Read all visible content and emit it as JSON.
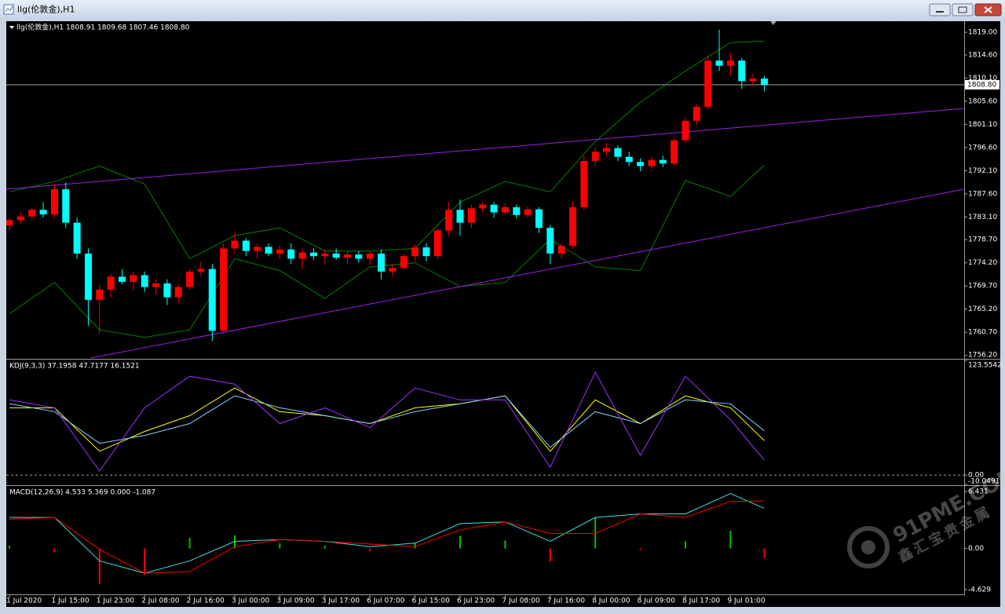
{
  "window": {
    "title": "llg(伦敦金),H1"
  },
  "watermark": [
    "91PME.COM",
    "鑫汇宝贵金属"
  ],
  "chart_data": [
    {
      "type": "candlestick",
      "label": "llg(伦敦金),H1  1808.91 1809.68 1807.46 1808.80",
      "categories": [
        "1 Jul 2020",
        null,
        null,
        null,
        "1 Jul 15:00",
        null,
        null,
        null,
        "1 Jul 23:00",
        null,
        null,
        null,
        "2 Jul 08:00",
        null,
        null,
        null,
        "2 Jul 16:00",
        null,
        null,
        null,
        "3 Jul 00:00",
        null,
        null,
        null,
        "3 Jul 09:00",
        null,
        null,
        null,
        "3 Jul 17:00",
        null,
        null,
        null,
        "6 Jul 07:00",
        null,
        null,
        null,
        "6 Jul 15:00",
        null,
        null,
        null,
        "6 Jul 23:00",
        null,
        null,
        null,
        "7 Jul 08:00",
        null,
        null,
        null,
        "7 Jul 16:00",
        null,
        null,
        null,
        "8 Jul 00:00",
        null,
        null,
        null,
        "8 Jul 09:00",
        null,
        null,
        null,
        "8 Jul 17:00",
        null,
        null,
        null,
        "9 Jul 01:00",
        null,
        null,
        null
      ],
      "open": [
        1781.5,
        1782.5,
        1783.2,
        1784.5,
        1783.6,
        1788.5,
        1782,
        1776,
        1767,
        1769,
        1771.5,
        1770.5,
        1771.8,
        1769.5,
        1770.2,
        1767.5,
        1769.5,
        1772.5,
        1773,
        1761,
        1777,
        1778.5,
        1776.5,
        1777.3,
        1776,
        1776.8,
        1775,
        1776.2,
        1775.5,
        1776,
        1775.2,
        1775.8,
        1775,
        1776,
        1772.5,
        1773.2,
        1775.5,
        1777.2,
        1775.5,
        1780.5,
        1784.5,
        1782,
        1784.8,
        1785.5,
        1784,
        1785,
        1783.5,
        1784.6,
        1781,
        1776,
        1777.5,
        1785,
        1794,
        1795.8,
        1796.5,
        1794.8,
        1793.8,
        1793,
        1794.2,
        1793.5,
        1798,
        1801.8,
        1804.5,
        1813.5,
        1812.5,
        1813.5,
        1809.5,
        1810
      ],
      "high": [
        1783,
        1784,
        1785,
        1786,
        1789.5,
        1789.8,
        1783,
        1777,
        1770,
        1772,
        1773,
        1772.5,
        1772.5,
        1771,
        1771,
        1770,
        1773,
        1774.5,
        1774,
        1778,
        1780,
        1779,
        1778,
        1778,
        1777.5,
        1778,
        1777,
        1777,
        1776.8,
        1777,
        1776.5,
        1776.5,
        1776.5,
        1776.8,
        1774,
        1776,
        1777.8,
        1778,
        1781,
        1786,
        1786.5,
        1785.5,
        1786,
        1786,
        1785.8,
        1785.5,
        1785.2,
        1785,
        1781.5,
        1778,
        1786,
        1795,
        1796.5,
        1797.5,
        1797,
        1795.8,
        1794.5,
        1795,
        1795,
        1798.5,
        1802.5,
        1805,
        1814.5,
        1819.5,
        1815,
        1814,
        1811,
        1810.5
      ],
      "low": [
        1780.5,
        1781.8,
        1782.5,
        1783,
        1783,
        1781,
        1775,
        1762,
        1760.5,
        1767.5,
        1770,
        1768.8,
        1768.5,
        1768,
        1766,
        1766.5,
        1769,
        1771.5,
        1759,
        1760.5,
        1776,
        1775.5,
        1775,
        1775.5,
        1775,
        1774,
        1773,
        1774.8,
        1774,
        1774.8,
        1774,
        1774.2,
        1773.8,
        1771,
        1771.5,
        1772.8,
        1774.5,
        1774.5,
        1775,
        1779.5,
        1779.5,
        1781,
        1784,
        1783,
        1783.5,
        1782.8,
        1783,
        1780,
        1774,
        1775,
        1777,
        1784.5,
        1793,
        1795,
        1794,
        1793,
        1792,
        1792.5,
        1792.8,
        1793,
        1797.5,
        1801,
        1804,
        1811.5,
        1810.5,
        1808,
        1808.5,
        1807.5
      ],
      "close": [
        1782.5,
        1783.2,
        1784.5,
        1783.6,
        1788.5,
        1782,
        1776,
        1767,
        1769,
        1771.5,
        1770.5,
        1771.8,
        1769.5,
        1770.2,
        1767.5,
        1769.5,
        1772.5,
        1773,
        1761,
        1777,
        1778.5,
        1776.5,
        1777.3,
        1776,
        1776.8,
        1775,
        1776.2,
        1775.5,
        1776,
        1775.2,
        1775.8,
        1775,
        1776,
        1772.5,
        1773.2,
        1775.5,
        1777.2,
        1775.5,
        1780.5,
        1784.5,
        1782,
        1784.8,
        1785.5,
        1784,
        1785,
        1783.5,
        1784.6,
        1781,
        1776,
        1777.5,
        1785,
        1794,
        1795.8,
        1796.5,
        1794.8,
        1793.8,
        1793,
        1794.2,
        1793.5,
        1798,
        1801.8,
        1804.5,
        1813.5,
        1812.5,
        1813.5,
        1809.5,
        1810,
        1808.8
      ],
      "up_color": "#ff0000",
      "down_color": "#00ffff",
      "bands": {
        "color": "#008000",
        "x": [
          0,
          4,
          8,
          12,
          16,
          20,
          24,
          28,
          32,
          36,
          40,
          44,
          48,
          52,
          56,
          60,
          64,
          67
        ],
        "upper": [
          1788,
          1790,
          1793,
          1789.5,
          1775,
          1779.5,
          1781,
          1776.5,
          1776.5,
          1777,
          1786,
          1790,
          1788,
          1797.8,
          1805.4,
          1811.5,
          1817,
          1817.3
        ],
        "lower": [
          1764.3,
          1770.4,
          1761.2,
          1759.7,
          1761.2,
          1775,
          1772.7,
          1767.3,
          1773.4,
          1774.2,
          1769.6,
          1770.4,
          1778.8,
          1773.4,
          1772.7,
          1790.2,
          1787.1,
          1793.2
        ]
      },
      "trendlines": [
        {
          "color": "#9b1fe8",
          "x": [
            -0.3,
            84.7
          ],
          "y": [
            1788.5,
            1804.2
          ]
        },
        {
          "color": "#9b1fe8",
          "x": [
            7.2,
            84.7
          ],
          "y": [
            1755.7,
            1788.5
          ]
        }
      ],
      "last_price": {
        "value": 1808.8,
        "label": "1808.80"
      },
      "ylim": [
        1755.7,
        1821
      ],
      "yticks": [
        {
          "value": 1819,
          "label": "1819.00"
        },
        {
          "value": 1814.6,
          "label": "1814.60"
        },
        {
          "value": 1810.1,
          "label": "1810.10"
        },
        {
          "value": 1805.6,
          "label": "1805.60"
        },
        {
          "value": 1801.1,
          "label": "1801.10"
        },
        {
          "value": 1796.6,
          "label": "1796.60"
        },
        {
          "value": 1792.1,
          "label": "1792.10"
        },
        {
          "value": 1787.6,
          "label": "1787.60"
        },
        {
          "value": 1783.1,
          "label": "1783.10"
        },
        {
          "value": 1778.7,
          "label": "1778.70"
        },
        {
          "value": 1774.2,
          "label": "1774.20"
        },
        {
          "value": 1769.7,
          "label": "1769.70"
        },
        {
          "value": 1765.2,
          "label": "1765.20"
        },
        {
          "value": 1760.7,
          "label": "1760.70"
        },
        {
          "value": 1756.2,
          "label": "1756.20"
        }
      ]
    },
    {
      "type": "line",
      "label": "KDJ(9,3,3) 37.1958 47.7177 16.1521",
      "x": [
        0,
        4,
        8,
        12,
        16,
        20,
        24,
        28,
        32,
        36,
        40,
        44,
        48,
        52,
        56,
        60,
        64,
        67
      ],
      "series": [
        {
          "color": "#ffff00",
          "values": [
            72.5,
            72.5,
            25.7,
            47,
            64,
            93.8,
            68.3,
            64,
            55.5,
            72.5,
            76.8,
            85.3,
            25.7,
            81,
            55.5,
            85.3,
            72.5,
            37.1958
          ]
        },
        {
          "color": "#87cefa",
          "values": [
            76.8,
            68.3,
            34.2,
            42.7,
            55.5,
            85.3,
            72.5,
            64,
            55.5,
            68.3,
            76.8,
            85.3,
            29.9,
            68.3,
            55.5,
            81,
            76.8,
            47.7177
          ]
        },
        {
          "color": "#9b30ff",
          "values": [
            81,
            72.5,
            4.4,
            72.5,
            106.5,
            98,
            55.5,
            72.5,
            51.2,
            93.8,
            81,
            81,
            8.6,
            110.8,
            21.4,
            106.5,
            59.7,
            16.1521
          ]
        }
      ],
      "dashed_zero": true,
      "ylim": [
        -10.0491,
        123.5542
      ],
      "yticks": [
        123.5542,
        {
          "value": 0,
          "label": "0.00"
        },
        -10.0491
      ]
    },
    {
      "type": "macd",
      "label": "MACD(12,26,9) 4.533 5.369 0.000 -1.087",
      "x": [
        0,
        4,
        8,
        12,
        16,
        20,
        24,
        28,
        32,
        36,
        40,
        44,
        48,
        52,
        56,
        60,
        64,
        67
      ],
      "series": [
        {
          "color": "#40e0e0",
          "values": [
            3.5,
            3.5,
            -1.4,
            -2.8,
            -1.4,
            0.8,
            1,
            0.8,
            0.2,
            0.6,
            2.8,
            3,
            0.8,
            3.5,
            3.9,
            3.9,
            6.2,
            4.533
          ]
        },
        {
          "color": "#ff0000",
          "values": [
            3.3,
            3.5,
            -0.1,
            -2.8,
            -2.6,
            0.2,
            1,
            0.8,
            0.5,
            0.2,
            2.1,
            3,
            1.7,
            1.7,
            3.9,
            3.5,
            5.3,
            5.369
          ]
        }
      ],
      "histogram": {
        "up_color": "#00c000",
        "down_color": "#ff0000",
        "values": [
          0.3,
          -0.4,
          -4,
          -3,
          1.2,
          1.5,
          0.6,
          0.3,
          -0.3,
          0.6,
          1.4,
          0.9,
          -1.5,
          3.5,
          -0.2,
          0.8,
          2,
          -1.087
        ]
      },
      "ylim": [
        -5.18,
        6.96
      ],
      "yticks": [
        6.431,
        {
          "value": 0,
          "label": "0.00"
        },
        -4.629
      ]
    }
  ]
}
